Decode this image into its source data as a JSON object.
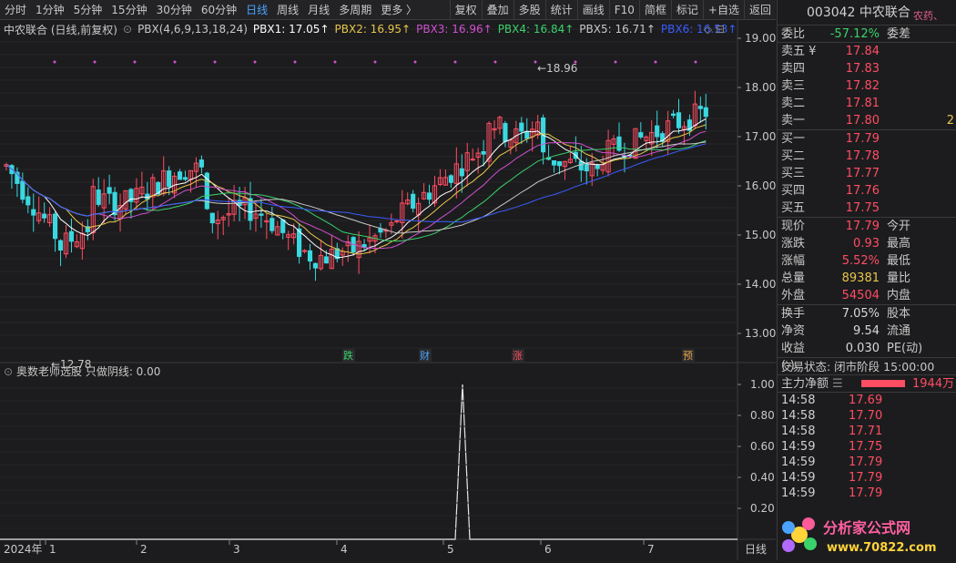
{
  "toolbar": {
    "periods": [
      "分时",
      "1分钟",
      "5分钟",
      "15分钟",
      "30分钟",
      "60分钟",
      "日线",
      "周线",
      "月线",
      "多周期",
      "更多 〉"
    ],
    "active_period": "日线",
    "tools": [
      "复权",
      "叠加",
      "多股",
      "统计",
      "画线",
      "F10",
      "简框",
      "标记",
      "+自选",
      "返回"
    ]
  },
  "indicator_line": {
    "stock": "中农联合 (日线,前复权)",
    "formula": "PBX(4,6,9,13,18,24)",
    "pbx": [
      {
        "label": "PBX1: 17.05↑",
        "color": "#ffffff"
      },
      {
        "label": "PBX2: 16.95↑",
        "color": "#e7c64a"
      },
      {
        "label": "PBX3: 16.96↑",
        "color": "#d050d0"
      },
      {
        "label": "PBX4: 16.84↑",
        "color": "#3ad26a"
      },
      {
        "label": "PBX5: 16.71↑",
        "color": "#c8c8c8"
      },
      {
        "label": "PBX6: 16.53↑",
        "color": "#3a5cff"
      }
    ]
  },
  "price_axis": [
    "19.00",
    "18.00",
    "17.00",
    "16.00",
    "15.00",
    "14.00",
    "13.00"
  ],
  "annotations": {
    "high": "18.96",
    "low": "12.78"
  },
  "markers": [
    {
      "text": "跌",
      "color": "#3ad26a"
    },
    {
      "text": "财",
      "color": "#4aa3ff"
    },
    {
      "text": "涨",
      "color": "#ff4d62"
    },
    {
      "text": "预",
      "color": "#e7a64a"
    }
  ],
  "sub_indicator": {
    "label": "奥数老师选股  只做阴线: 0.00",
    "axis": [
      "1.00",
      "0.80",
      "0.60",
      "0.40",
      "0.20"
    ]
  },
  "date_axis": {
    "labels": [
      "2024年",
      "1",
      "2",
      "3",
      "4",
      "5",
      "6",
      "7"
    ],
    "corner": "日线"
  },
  "sidebar": {
    "code_name": "003042 中农联合",
    "badge": "农药、",
    "weibi": {
      "label": "委比",
      "value": "-57.12%",
      "label2": "委差"
    },
    "asks": [
      {
        "label": "卖五 ¥",
        "price": "17.84"
      },
      {
        "label": "卖四",
        "price": "17.83"
      },
      {
        "label": "卖三",
        "price": "17.82"
      },
      {
        "label": "卖二",
        "price": "17.81"
      },
      {
        "label": "卖一",
        "price": "17.80",
        "vol": "2"
      }
    ],
    "bids": [
      {
        "label": "买一",
        "price": "17.79"
      },
      {
        "label": "买二",
        "price": "17.78"
      },
      {
        "label": "买三",
        "price": "17.77"
      },
      {
        "label": "买四",
        "price": "17.76"
      },
      {
        "label": "买五",
        "price": "17.75"
      }
    ],
    "stats": [
      {
        "label": "现价",
        "value": "17.79",
        "label2": "今开",
        "cls": "red"
      },
      {
        "label": "涨跌",
        "value": "0.93",
        "label2": "最高",
        "cls": "red"
      },
      {
        "label": "涨幅",
        "value": "5.52%",
        "label2": "最低",
        "cls": "red"
      },
      {
        "label": "总量",
        "value": "89381",
        "label2": "量比",
        "cls": "yellow"
      },
      {
        "label": "外盘",
        "value": "54504",
        "label2": "内盘",
        "cls": "red"
      }
    ],
    "stats2": [
      {
        "label": "换手",
        "value": "7.05%",
        "label2": "股本"
      },
      {
        "label": "净资",
        "value": "9.54",
        "label2": "流通"
      },
      {
        "label": "收益(-)",
        "value": "0.030",
        "label2": "PE(动)"
      }
    ],
    "trade_status": "交易状态: 闭市阶段 15:00:00",
    "main_flow": {
      "label": "主力净额",
      "value": "1944万"
    },
    "ticks": [
      {
        "time": "14:58",
        "price": "17.69"
      },
      {
        "time": "14:58",
        "price": "17.70"
      },
      {
        "time": "14:58",
        "price": "17.71"
      },
      {
        "time": "14:59",
        "price": "17.75"
      },
      {
        "time": "14:59",
        "price": "17.79"
      },
      {
        "time": "14:59",
        "price": "17.79"
      },
      {
        "time": "14:59",
        "price": "17.79"
      }
    ],
    "watermark": {
      "title": "分析家公式网",
      "url": "www.70822.com"
    }
  }
}
